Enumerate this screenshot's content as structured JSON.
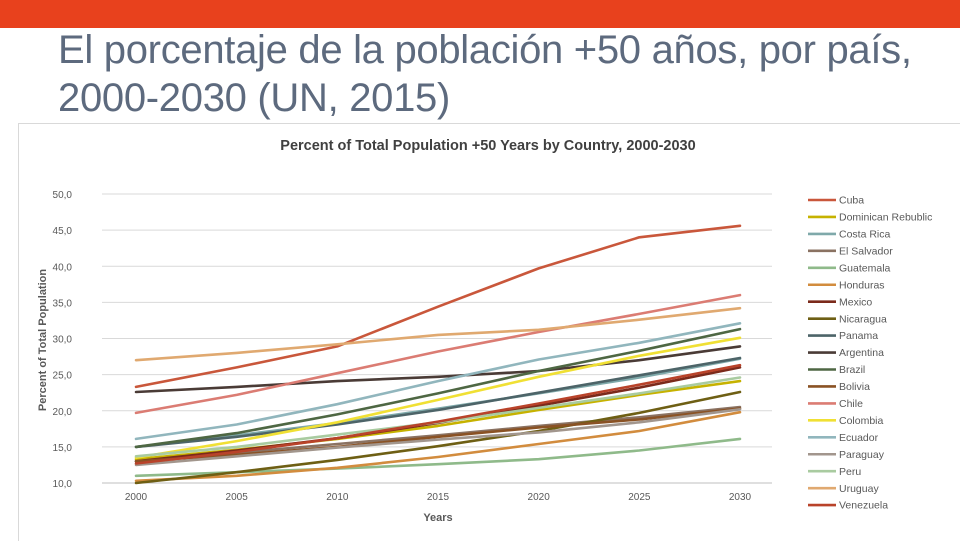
{
  "slide": {
    "title": "El porcentaje de la población +50 años, por país, 2000-2030 (UN, 2015)"
  },
  "colors": {
    "top_bar": "#e8411d",
    "title_text": "#5d6a7e"
  },
  "chart_data": {
    "type": "line",
    "title": "Percent of Total Population +50 Years by Country, 2000-2030",
    "xlabel": "Years",
    "ylabel": "Percent of Total Population",
    "x": [
      2000,
      2005,
      2010,
      2015,
      2020,
      2025,
      2030
    ],
    "x_tick_labels": [
      "2000",
      "2005",
      "2010",
      "2015",
      "2020",
      "2025",
      "2030"
    ],
    "ylim": [
      10,
      50
    ],
    "y_ticks": [
      10,
      15,
      20,
      25,
      30,
      35,
      40,
      45,
      50
    ],
    "y_tick_labels": [
      "10,0",
      "15,0",
      "20,0",
      "25,0",
      "30,0",
      "35,0",
      "40,0",
      "45,0",
      "50,0"
    ],
    "grid": true,
    "legend_position": "right",
    "series": [
      {
        "name": "Cuba",
        "color": "#c9573b",
        "values": [
          23.3,
          26.0,
          28.9,
          34.4,
          39.7,
          44.0,
          45.6
        ]
      },
      {
        "name": "Dominican Rebublic",
        "color": "#c6b200",
        "values": [
          13.3,
          14.6,
          16.1,
          17.9,
          20.1,
          22.2,
          24.1
        ]
      },
      {
        "name": "Costa Rica",
        "color": "#7fa9aa",
        "values": [
          15.0,
          16.6,
          18.3,
          20.3,
          22.4,
          24.6,
          27.2
        ]
      },
      {
        "name": "El Salvador",
        "color": "#8a7262",
        "values": [
          13.0,
          14.2,
          15.4,
          16.6,
          17.9,
          19.1,
          20.5
        ]
      },
      {
        "name": "Guatemala",
        "color": "#8fba8a",
        "values": [
          11.0,
          11.5,
          12.0,
          12.6,
          13.3,
          14.5,
          16.1
        ]
      },
      {
        "name": "Honduras",
        "color": "#d28c3e",
        "values": [
          10.3,
          11.0,
          12.1,
          13.6,
          15.4,
          17.2,
          19.8
        ]
      },
      {
        "name": "Mexico",
        "color": "#7b2a1b",
        "values": [
          13.0,
          14.5,
          16.2,
          18.3,
          20.7,
          23.2,
          26.0
        ]
      },
      {
        "name": "Nicaragua",
        "color": "#6e5f14",
        "values": [
          10.0,
          11.5,
          13.2,
          15.1,
          17.2,
          19.7,
          22.6
        ]
      },
      {
        "name": "Panama",
        "color": "#4d6468",
        "values": [
          15.0,
          16.4,
          18.1,
          20.1,
          22.5,
          24.9,
          27.3
        ]
      },
      {
        "name": "Argentina",
        "color": "#4a3b36",
        "values": [
          22.6,
          23.3,
          24.1,
          24.7,
          25.5,
          27.0,
          28.9
        ]
      },
      {
        "name": "Brazil",
        "color": "#4e6743",
        "values": [
          15.0,
          16.9,
          19.5,
          22.4,
          25.5,
          28.3,
          31.3
        ]
      },
      {
        "name": "Bolivia",
        "color": "#8a5224",
        "values": [
          13.0,
          13.9,
          15.0,
          16.4,
          17.7,
          18.8,
          20.3
        ]
      },
      {
        "name": "Chile",
        "color": "#db7c73",
        "values": [
          19.7,
          22.2,
          25.2,
          28.2,
          30.9,
          33.4,
          36.0
        ]
      },
      {
        "name": "Colombia",
        "color": "#f0e034",
        "values": [
          13.5,
          15.8,
          18.4,
          21.5,
          24.7,
          27.6,
          30.1
        ]
      },
      {
        "name": "Ecuador",
        "color": "#91b6bd",
        "values": [
          16.1,
          18.1,
          20.9,
          24.1,
          27.1,
          29.4,
          32.1
        ]
      },
      {
        "name": "Paraguay",
        "color": "#a2968d",
        "values": [
          12.5,
          13.7,
          14.9,
          16.0,
          17.0,
          18.4,
          20.2
        ]
      },
      {
        "name": "Peru",
        "color": "#a9cba0",
        "values": [
          13.7,
          15.0,
          16.7,
          18.4,
          20.4,
          22.4,
          24.6
        ]
      },
      {
        "name": "Uruguay",
        "color": "#e0a970",
        "values": [
          27.0,
          28.0,
          29.2,
          30.5,
          31.2,
          32.6,
          34.2
        ]
      },
      {
        "name": "Venezuela",
        "color": "#b9432a",
        "values": [
          12.7,
          14.3,
          16.2,
          18.5,
          21.0,
          23.6,
          26.3
        ]
      }
    ]
  }
}
